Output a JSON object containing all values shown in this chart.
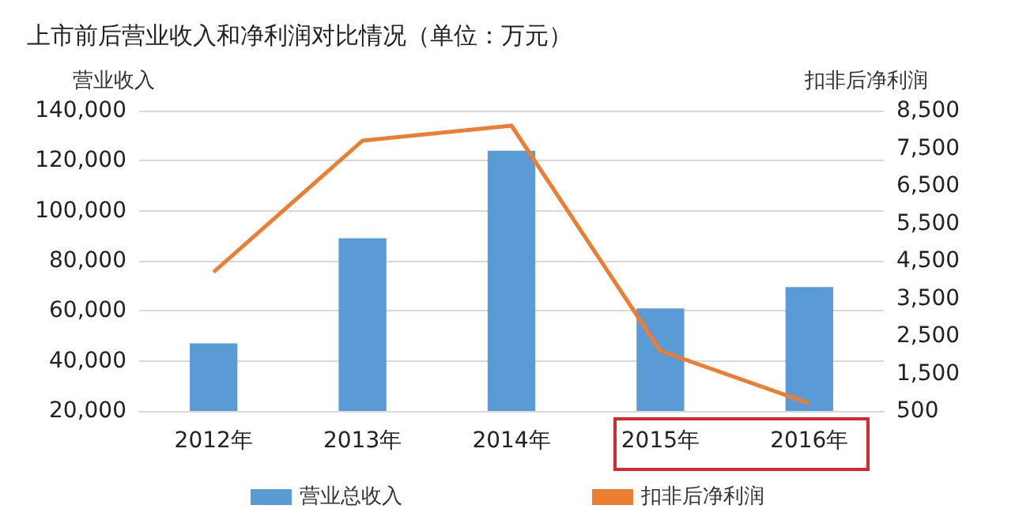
{
  "chart_data": {
    "type": "bar",
    "title": "上市前后营业收入和净利润对比情况（单位：万元）",
    "ylabel": "营业收入",
    "y2label": "扣非后净利润",
    "categories": [
      "2012年",
      "2013年",
      "2014年",
      "2015年",
      "2016年"
    ],
    "series": [
      {
        "name": "营业总收入",
        "color": "#5b9bd5",
        "values": [
          47000,
          89000,
          124000,
          61000,
          69500
        ]
      },
      {
        "name": "扣非后净利润",
        "type": "line",
        "axis": "y2",
        "color": "#ed7d31",
        "values": [
          4200,
          7700,
          8100,
          2100,
          700
        ]
      }
    ],
    "ylim": [
      20000,
      140000
    ],
    "yticks": [
      {
        "value": 20000,
        "label": "20,000"
      },
      {
        "value": 40000,
        "label": "40,000"
      },
      {
        "value": 60000,
        "label": "60,000"
      },
      {
        "value": 80000,
        "label": "80,000"
      },
      {
        "value": 100000,
        "label": "100,000"
      },
      {
        "value": 120000,
        "label": "120,000"
      },
      {
        "value": 140000,
        "label": "140,000"
      }
    ],
    "y2lim": [
      500,
      8500
    ],
    "y2ticks": [
      {
        "value": 500,
        "label": "500"
      },
      {
        "value": 1500,
        "label": "1,500"
      },
      {
        "value": 2500,
        "label": "2,500"
      },
      {
        "value": 3500,
        "label": "3,500"
      },
      {
        "value": 4500,
        "label": "4,500"
      },
      {
        "value": 5500,
        "label": "5,500"
      },
      {
        "value": 6500,
        "label": "6,500"
      },
      {
        "value": 7500,
        "label": "7,500"
      },
      {
        "value": 8500,
        "label": "8,500"
      }
    ],
    "grid": "y",
    "legend": "bottom",
    "marker": "none"
  }
}
